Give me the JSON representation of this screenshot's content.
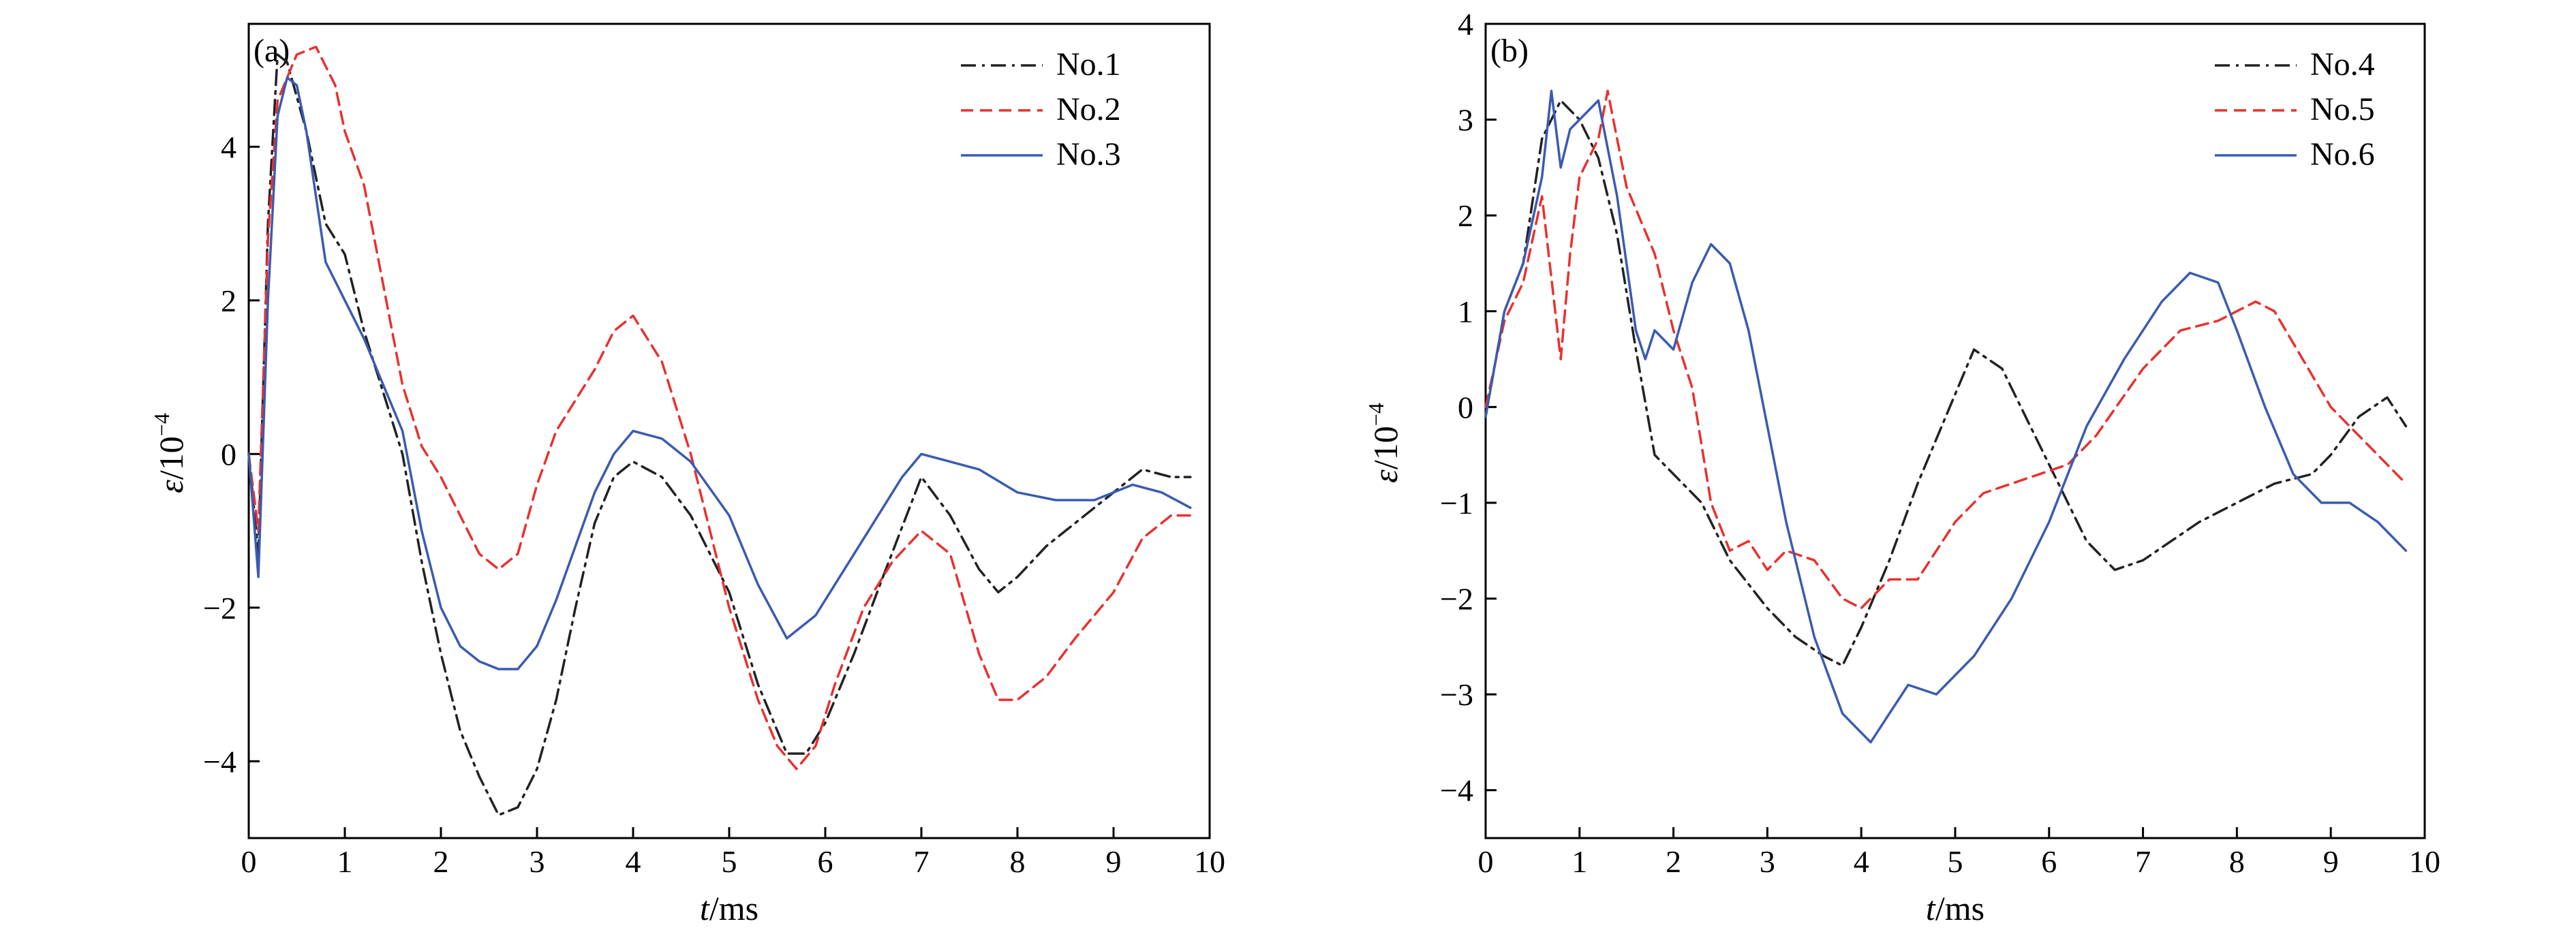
{
  "chart_data": [
    {
      "panel_label": "(a)",
      "type": "line",
      "xlabel_var": "t",
      "xlabel_unit": "/ms",
      "ylabel_var": "ε",
      "ylabel_unit": "/10",
      "ylabel_exp": "−4",
      "xlim": [
        0,
        10
      ],
      "ylim": [
        -5,
        5.6
      ],
      "xticks": [
        0,
        1,
        2,
        3,
        4,
        5,
        6,
        7,
        8,
        9,
        10
      ],
      "yticks": [
        -4,
        -2,
        0,
        2,
        4
      ],
      "ytick_labels": [
        "−4",
        "−2",
        "0",
        "2",
        "4"
      ],
      "legend_position": "top-right",
      "series": [
        {
          "name": "No.1",
          "color": "#222222",
          "dash": "dashdot",
          "x": [
            0,
            0.1,
            0.2,
            0.3,
            0.4,
            0.6,
            0.8,
            1.0,
            1.2,
            1.4,
            1.6,
            1.8,
            2.0,
            2.2,
            2.4,
            2.6,
            2.8,
            3.0,
            3.2,
            3.4,
            3.6,
            3.8,
            4.0,
            4.3,
            4.6,
            5.0,
            5.3,
            5.6,
            5.8,
            6.0,
            6.3,
            6.6,
            7.0,
            7.3,
            7.6,
            7.8,
            8.0,
            8.3,
            8.6,
            9.0,
            9.3,
            9.6,
            9.8
          ],
          "y": [
            0,
            -1.3,
            3.0,
            5.2,
            5.1,
            4.2,
            3.0,
            2.6,
            1.6,
            0.8,
            0.0,
            -1.4,
            -2.6,
            -3.6,
            -4.2,
            -4.7,
            -4.6,
            -4.1,
            -3.2,
            -2.0,
            -0.9,
            -0.3,
            -0.1,
            -0.3,
            -0.8,
            -1.8,
            -3.0,
            -3.9,
            -3.9,
            -3.5,
            -2.6,
            -1.6,
            -0.3,
            -0.8,
            -1.5,
            -1.8,
            -1.6,
            -1.2,
            -0.9,
            -0.5,
            -0.2,
            -0.3,
            -0.3
          ]
        },
        {
          "name": "No.2",
          "color": "#e8312f",
          "dash": "dashed",
          "x": [
            0,
            0.1,
            0.2,
            0.3,
            0.5,
            0.7,
            0.9,
            1.0,
            1.2,
            1.4,
            1.6,
            1.8,
            2.0,
            2.2,
            2.4,
            2.6,
            2.8,
            3.0,
            3.2,
            3.4,
            3.6,
            3.8,
            4.0,
            4.3,
            4.6,
            5.0,
            5.3,
            5.5,
            5.7,
            5.9,
            6.1,
            6.4,
            6.7,
            7.0,
            7.3,
            7.6,
            7.8,
            8.0,
            8.3,
            8.6,
            9.0,
            9.3,
            9.6,
            9.8
          ],
          "y": [
            0,
            -1.0,
            2.8,
            4.6,
            5.2,
            5.3,
            4.8,
            4.2,
            3.5,
            2.2,
            0.9,
            0.1,
            -0.3,
            -0.8,
            -1.3,
            -1.5,
            -1.3,
            -0.4,
            0.3,
            0.7,
            1.1,
            1.6,
            1.8,
            1.2,
            0.0,
            -2.0,
            -3.2,
            -3.8,
            -4.1,
            -3.8,
            -3.0,
            -2.0,
            -1.4,
            -1.0,
            -1.3,
            -2.6,
            -3.2,
            -3.2,
            -2.9,
            -2.4,
            -1.8,
            -1.1,
            -0.8,
            -0.8
          ]
        },
        {
          "name": "No.3",
          "color": "#3b5bb0",
          "dash": "solid",
          "x": [
            0,
            0.1,
            0.2,
            0.3,
            0.4,
            0.5,
            0.6,
            0.8,
            1.0,
            1.2,
            1.4,
            1.6,
            1.8,
            2.0,
            2.2,
            2.4,
            2.6,
            2.8,
            3.0,
            3.2,
            3.4,
            3.6,
            3.8,
            4.0,
            4.3,
            4.6,
            5.0,
            5.3,
            5.6,
            5.9,
            6.2,
            6.5,
            6.8,
            7.0,
            7.3,
            7.6,
            8.0,
            8.4,
            8.8,
            9.2,
            9.5,
            9.8
          ],
          "y": [
            0,
            -1.6,
            2.0,
            4.4,
            4.9,
            4.8,
            4.2,
            2.5,
            2.0,
            1.5,
            0.9,
            0.3,
            -1.0,
            -2.0,
            -2.5,
            -2.7,
            -2.8,
            -2.8,
            -2.5,
            -1.9,
            -1.2,
            -0.5,
            0.0,
            0.3,
            0.2,
            -0.1,
            -0.8,
            -1.7,
            -2.4,
            -2.1,
            -1.5,
            -0.9,
            -0.3,
            0.0,
            -0.1,
            -0.2,
            -0.5,
            -0.6,
            -0.6,
            -0.4,
            -0.5,
            -0.7
          ]
        }
      ]
    },
    {
      "panel_label": "(b)",
      "type": "line",
      "xlabel_var": "t",
      "xlabel_unit": "/ms",
      "ylabel_var": "ε",
      "ylabel_unit": "/10",
      "ylabel_exp": "−4",
      "xlim": [
        0,
        10
      ],
      "ylim": [
        -4.5,
        4
      ],
      "xticks": [
        0,
        1,
        2,
        3,
        4,
        5,
        6,
        7,
        8,
        9,
        10
      ],
      "yticks": [
        -4,
        -3,
        -2,
        -1,
        0,
        1,
        2,
        3,
        4
      ],
      "ytick_labels": [
        "−4",
        "−3",
        "−2",
        "−1",
        "0",
        "1",
        "2",
        "3",
        "4"
      ],
      "legend_position": "top-right",
      "series": [
        {
          "name": "No.4",
          "color": "#222222",
          "dash": "dashdot",
          "x": [
            0,
            0.2,
            0.4,
            0.6,
            0.8,
            1.0,
            1.2,
            1.4,
            1.6,
            1.8,
            2.0,
            2.3,
            2.6,
            3.0,
            3.3,
            3.6,
            3.8,
            4.0,
            4.3,
            4.6,
            4.9,
            5.2,
            5.5,
            5.8,
            6.1,
            6.4,
            6.7,
            7.0,
            7.3,
            7.6,
            8.0,
            8.4,
            8.8,
            9.0,
            9.3,
            9.6,
            9.8
          ],
          "y": [
            -0.1,
            1.0,
            1.5,
            2.8,
            3.2,
            3.0,
            2.6,
            1.8,
            0.6,
            -0.5,
            -0.7,
            -1.0,
            -1.6,
            -2.1,
            -2.4,
            -2.6,
            -2.7,
            -2.3,
            -1.6,
            -0.8,
            -0.1,
            0.6,
            0.4,
            -0.2,
            -0.8,
            -1.4,
            -1.7,
            -1.6,
            -1.4,
            -1.2,
            -1.0,
            -0.8,
            -0.7,
            -0.5,
            -0.1,
            0.1,
            -0.2
          ]
        },
        {
          "name": "No.5",
          "color": "#e8312f",
          "dash": "dashed",
          "x": [
            0,
            0.2,
            0.4,
            0.6,
            0.8,
            0.9,
            1.0,
            1.2,
            1.3,
            1.5,
            1.8,
            2.0,
            2.2,
            2.4,
            2.6,
            2.8,
            3.0,
            3.2,
            3.5,
            3.8,
            4.0,
            4.3,
            4.6,
            5.0,
            5.3,
            5.6,
            5.9,
            6.2,
            6.5,
            7.0,
            7.4,
            7.8,
            8.2,
            8.4,
            8.7,
            9.0,
            9.3,
            9.6,
            9.8
          ],
          "y": [
            0,
            0.9,
            1.3,
            2.2,
            0.5,
            1.6,
            2.4,
            2.8,
            3.3,
            2.3,
            1.6,
            0.8,
            0.2,
            -1.0,
            -1.5,
            -1.4,
            -1.7,
            -1.5,
            -1.6,
            -2.0,
            -2.1,
            -1.8,
            -1.8,
            -1.2,
            -0.9,
            -0.8,
            -0.7,
            -0.6,
            -0.3,
            0.4,
            0.8,
            0.9,
            1.1,
            1.0,
            0.5,
            0.0,
            -0.3,
            -0.6,
            -0.8
          ]
        },
        {
          "name": "No.6",
          "color": "#3b5bb0",
          "dash": "solid",
          "x": [
            0,
            0.2,
            0.4,
            0.6,
            0.7,
            0.8,
            0.9,
            1.0,
            1.2,
            1.4,
            1.6,
            1.7,
            1.8,
            2.0,
            2.2,
            2.4,
            2.6,
            2.8,
            3.0,
            3.2,
            3.5,
            3.8,
            4.0,
            4.1,
            4.3,
            4.5,
            4.8,
            5.2,
            5.6,
            6.0,
            6.4,
            6.8,
            7.2,
            7.5,
            7.8,
            8.0,
            8.3,
            8.6,
            8.9,
            9.2,
            9.5,
            9.8
          ],
          "y": [
            -0.1,
            1.0,
            1.5,
            2.4,
            3.3,
            2.5,
            2.9,
            3.0,
            3.2,
            2.2,
            0.8,
            0.5,
            0.8,
            0.6,
            1.3,
            1.7,
            1.5,
            0.8,
            -0.2,
            -1.2,
            -2.4,
            -3.2,
            -3.4,
            -3.5,
            -3.2,
            -2.9,
            -3.0,
            -2.6,
            -2.0,
            -1.2,
            -0.2,
            0.5,
            1.1,
            1.4,
            1.3,
            0.8,
            0.0,
            -0.7,
            -1.0,
            -1.0,
            -1.2,
            -1.5
          ]
        }
      ]
    }
  ]
}
